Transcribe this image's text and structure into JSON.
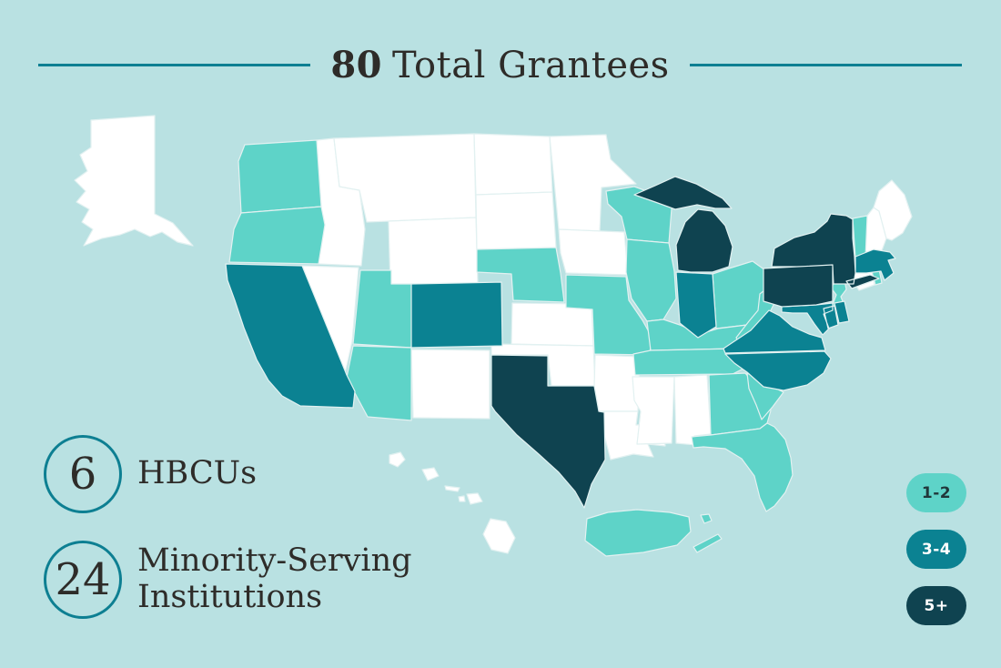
{
  "title": {
    "count": "80",
    "rest": "Total Grantees"
  },
  "stats": [
    {
      "value": "6",
      "lines": [
        "HBCUs",
        ""
      ]
    },
    {
      "value": "24",
      "lines": [
        "Minority-Serving",
        "Institutions"
      ]
    }
  ],
  "legend": [
    {
      "label": "1-2",
      "color": "#5ed3c8",
      "text_color": "#21373a"
    },
    {
      "label": "3-4",
      "color": "#0b8292",
      "text_color": "#ffffff"
    },
    {
      "label": "5+",
      "color": "#0f4350",
      "text_color": "#ffffff"
    }
  ],
  "colors": {
    "background": "#b9e1e2",
    "none": "#ffffff",
    "rule": "#0d7f92",
    "circle_stroke": "#0d7f92",
    "text": "#2e2c29",
    "state_border": "#e2f1f1"
  },
  "chart_data": {
    "type": "heatmap",
    "subtype": "us-choropleth",
    "title": "80 Total Grantees",
    "legend_position": "right",
    "buckets": [
      "1-2",
      "3-4",
      "5+"
    ],
    "no_data_level": "none",
    "states": [
      {
        "id": "ID",
        "name": "Idaho",
        "level": "none"
      },
      {
        "id": "MT",
        "name": "Montana",
        "level": "none"
      },
      {
        "id": "WY",
        "name": "Wyoming",
        "level": "none"
      },
      {
        "id": "NV",
        "name": "Nevada",
        "level": "none"
      },
      {
        "id": "NM",
        "name": "New Mexico",
        "level": "none"
      },
      {
        "id": "ND",
        "name": "North Dakota",
        "level": "none"
      },
      {
        "id": "SD",
        "name": "South Dakota",
        "level": "none"
      },
      {
        "id": "KS",
        "name": "Kansas",
        "level": "none"
      },
      {
        "id": "OK",
        "name": "Oklahoma",
        "level": "none"
      },
      {
        "id": "MN",
        "name": "Minnesota",
        "level": "none"
      },
      {
        "id": "IA",
        "name": "Iowa",
        "level": "none"
      },
      {
        "id": "AR",
        "name": "Arkansas",
        "level": "none"
      },
      {
        "id": "LA",
        "name": "Louisiana",
        "level": "none"
      },
      {
        "id": "MS",
        "name": "Mississippi",
        "level": "none"
      },
      {
        "id": "AL",
        "name": "Alabama",
        "level": "none"
      },
      {
        "id": "CT",
        "name": "Connecticut",
        "level": "none"
      },
      {
        "id": "NH",
        "name": "New Hampshire",
        "level": "none"
      },
      {
        "id": "ME",
        "name": "Maine",
        "level": "none"
      },
      {
        "id": "AK",
        "name": "Alaska",
        "level": "none"
      },
      {
        "id": "HI",
        "name": "Hawaii",
        "level": "none"
      },
      {
        "id": "WA",
        "name": "Washington",
        "level": "1-2"
      },
      {
        "id": "OR",
        "name": "Oregon",
        "level": "1-2"
      },
      {
        "id": "UT",
        "name": "Utah",
        "level": "1-2"
      },
      {
        "id": "AZ",
        "name": "Arizona",
        "level": "1-2"
      },
      {
        "id": "NE",
        "name": "Nebraska",
        "level": "1-2"
      },
      {
        "id": "MO",
        "name": "Missouri",
        "level": "1-2"
      },
      {
        "id": "WI",
        "name": "Wisconsin",
        "level": "1-2"
      },
      {
        "id": "IL",
        "name": "Illinois",
        "level": "1-2"
      },
      {
        "id": "OH",
        "name": "Ohio",
        "level": "1-2"
      },
      {
        "id": "KY",
        "name": "Kentucky",
        "level": "1-2"
      },
      {
        "id": "TN",
        "name": "Tennessee",
        "level": "1-2"
      },
      {
        "id": "WV",
        "name": "West Virginia",
        "level": "1-2"
      },
      {
        "id": "GA",
        "name": "Georgia",
        "level": "1-2"
      },
      {
        "id": "SC",
        "name": "South Carolina",
        "level": "1-2"
      },
      {
        "id": "FL",
        "name": "Florida",
        "level": "1-2"
      },
      {
        "id": "NJ",
        "name": "New Jersey",
        "level": "1-2"
      },
      {
        "id": "VT",
        "name": "Vermont",
        "level": "1-2"
      },
      {
        "id": "RI",
        "name": "Rhode Island",
        "level": "1-2"
      },
      {
        "id": "PR",
        "name": "Puerto Rico",
        "level": "1-2"
      },
      {
        "id": "VI",
        "name": "U.S. Virgin Islands",
        "level": "1-2"
      },
      {
        "id": "CA",
        "name": "California",
        "level": "3-4"
      },
      {
        "id": "CO",
        "name": "Colorado",
        "level": "3-4"
      },
      {
        "id": "IN",
        "name": "Indiana",
        "level": "3-4"
      },
      {
        "id": "VA",
        "name": "Virginia",
        "level": "3-4"
      },
      {
        "id": "NC",
        "name": "North Carolina",
        "level": "3-4"
      },
      {
        "id": "MA",
        "name": "Massachusetts",
        "level": "3-4"
      },
      {
        "id": "MD",
        "name": "Maryland",
        "level": "3-4"
      },
      {
        "id": "DE",
        "name": "Delaware",
        "level": "3-4"
      },
      {
        "id": "TX",
        "name": "Texas",
        "level": "5+"
      },
      {
        "id": "MI",
        "name": "Michigan",
        "level": "5+"
      },
      {
        "id": "NY",
        "name": "New York",
        "level": "5+"
      },
      {
        "id": "PA",
        "name": "Pennsylvania",
        "level": "5+"
      }
    ]
  }
}
